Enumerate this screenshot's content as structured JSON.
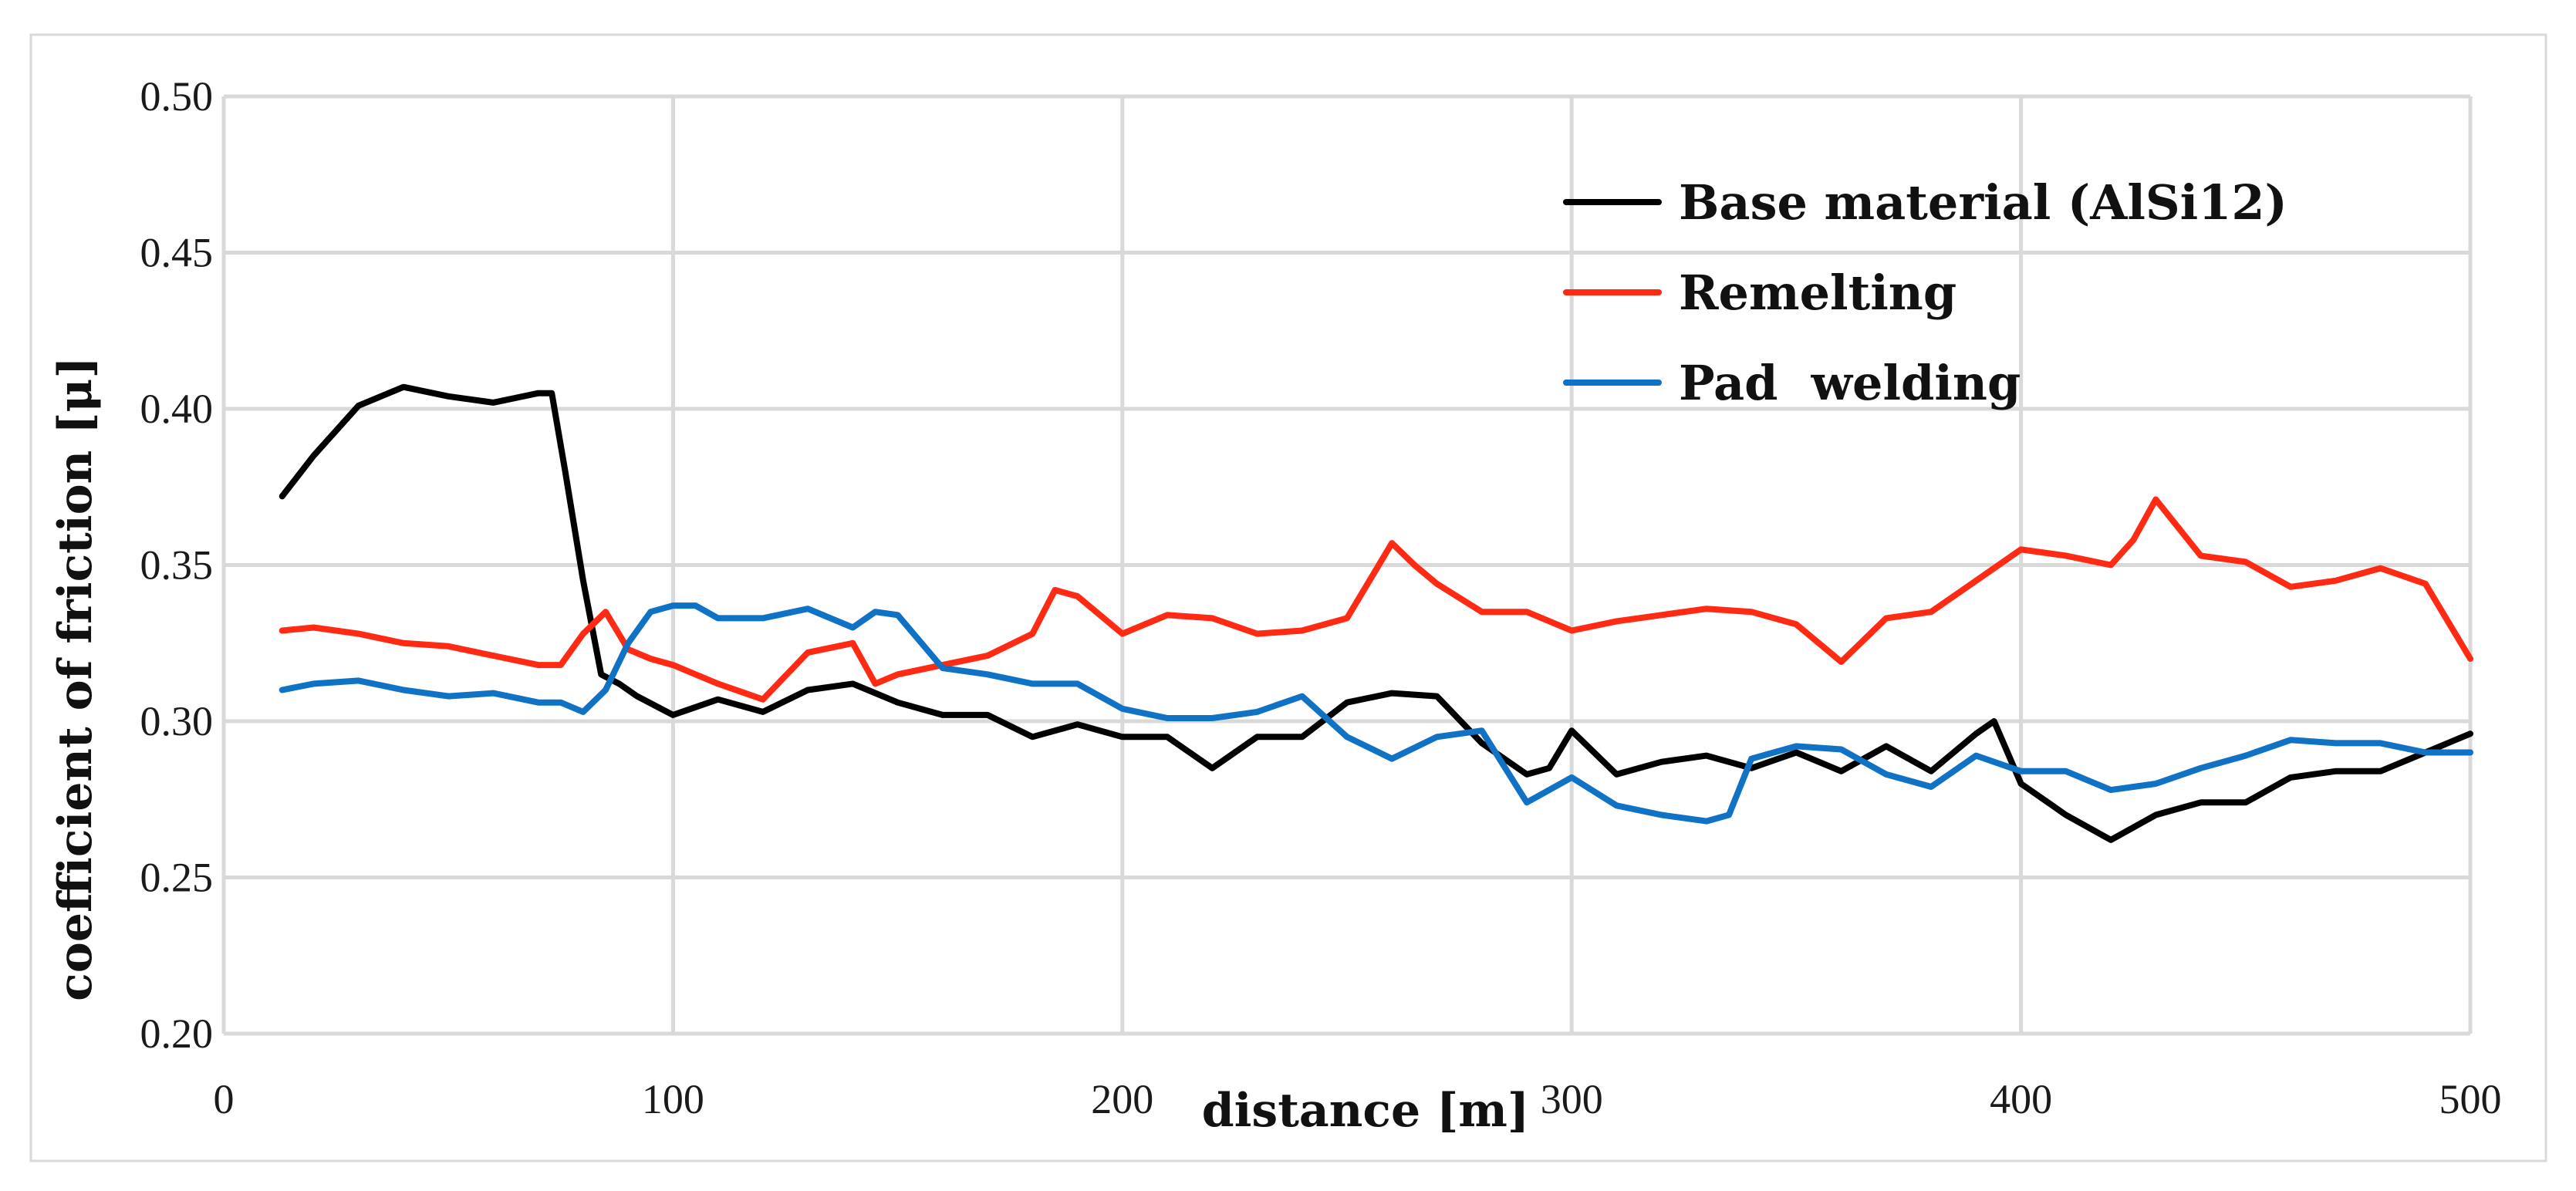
{
  "chart_data": {
    "type": "line",
    "xlabel": "distance [m]",
    "ylabel": "coefficient of friction [μ]",
    "xlim": [
      0,
      500
    ],
    "ylim": [
      0.2,
      0.5
    ],
    "xticks": [
      0,
      100,
      200,
      300,
      400,
      500
    ],
    "xtick_labels": [
      "0",
      "100",
      "200",
      "300",
      "400",
      "500"
    ],
    "yticks": [
      0.2,
      0.25,
      0.3,
      0.35,
      0.4,
      0.45,
      0.5
    ],
    "ytick_labels": [
      "0.20",
      "0.25",
      "0.30",
      "0.35",
      "0.40",
      "0.45",
      "0.50"
    ],
    "grid": true,
    "legend_position": "top-right",
    "series": [
      {
        "name": "Base material (AlSi12)",
        "color": "#000000",
        "x": [
          13,
          20,
          30,
          40,
          50,
          60,
          70,
          73,
          76,
          80,
          84,
          88,
          92,
          100,
          110,
          120,
          130,
          140,
          150,
          160,
          170,
          180,
          190,
          200,
          210,
          220,
          230,
          240,
          250,
          260,
          270,
          280,
          290,
          295,
          300,
          310,
          320,
          330,
          340,
          350,
          360,
          370,
          380,
          390,
          394,
          400,
          410,
          420,
          430,
          440,
          450,
          460,
          470,
          480,
          490,
          500
        ],
        "y": [
          0.372,
          0.385,
          0.401,
          0.407,
          0.404,
          0.402,
          0.405,
          0.405,
          0.38,
          0.345,
          0.315,
          0.312,
          0.308,
          0.302,
          0.307,
          0.303,
          0.31,
          0.312,
          0.306,
          0.302,
          0.302,
          0.295,
          0.299,
          0.295,
          0.295,
          0.285,
          0.295,
          0.295,
          0.306,
          0.309,
          0.308,
          0.293,
          0.283,
          0.285,
          0.297,
          0.283,
          0.287,
          0.289,
          0.285,
          0.29,
          0.284,
          0.292,
          0.284,
          0.296,
          0.3,
          0.28,
          0.27,
          0.262,
          0.27,
          0.274,
          0.274,
          0.282,
          0.284,
          0.284,
          0.29,
          0.296
        ]
      },
      {
        "name": "Remelting",
        "color": "#ff2a14",
        "x": [
          13,
          20,
          30,
          40,
          50,
          60,
          70,
          75,
          80,
          85,
          90,
          95,
          100,
          110,
          120,
          130,
          140,
          145,
          150,
          160,
          170,
          180,
          185,
          190,
          200,
          210,
          220,
          230,
          240,
          250,
          260,
          265,
          270,
          280,
          290,
          300,
          310,
          320,
          330,
          340,
          350,
          360,
          370,
          380,
          390,
          400,
          410,
          420,
          425,
          430,
          440,
          450,
          460,
          470,
          480,
          490,
          500
        ],
        "y": [
          0.329,
          0.33,
          0.328,
          0.325,
          0.324,
          0.321,
          0.318,
          0.318,
          0.328,
          0.335,
          0.323,
          0.32,
          0.318,
          0.312,
          0.307,
          0.322,
          0.325,
          0.312,
          0.315,
          0.318,
          0.321,
          0.328,
          0.342,
          0.34,
          0.328,
          0.334,
          0.333,
          0.328,
          0.329,
          0.333,
          0.357,
          0.35,
          0.344,
          0.335,
          0.335,
          0.329,
          0.332,
          0.334,
          0.336,
          0.335,
          0.331,
          0.319,
          0.333,
          0.335,
          0.345,
          0.355,
          0.353,
          0.35,
          0.358,
          0.371,
          0.353,
          0.351,
          0.343,
          0.345,
          0.349,
          0.344,
          0.32
        ]
      },
      {
        "name": "Pad  welding",
        "color": "#0f72c4",
        "x": [
          13,
          20,
          30,
          40,
          50,
          60,
          70,
          75,
          80,
          85,
          90,
          95,
          100,
          105,
          110,
          120,
          130,
          140,
          145,
          150,
          160,
          170,
          180,
          190,
          200,
          210,
          220,
          230,
          240,
          250,
          260,
          270,
          280,
          290,
          300,
          310,
          320,
          330,
          335,
          340,
          350,
          360,
          370,
          380,
          390,
          400,
          410,
          420,
          430,
          440,
          450,
          460,
          470,
          480,
          490,
          500
        ],
        "y": [
          0.31,
          0.312,
          0.313,
          0.31,
          0.308,
          0.309,
          0.306,
          0.306,
          0.303,
          0.31,
          0.325,
          0.335,
          0.337,
          0.337,
          0.333,
          0.333,
          0.336,
          0.33,
          0.335,
          0.334,
          0.317,
          0.315,
          0.312,
          0.312,
          0.304,
          0.301,
          0.301,
          0.303,
          0.308,
          0.295,
          0.288,
          0.295,
          0.297,
          0.274,
          0.282,
          0.273,
          0.27,
          0.268,
          0.27,
          0.288,
          0.292,
          0.291,
          0.283,
          0.279,
          0.289,
          0.284,
          0.284,
          0.278,
          0.28,
          0.285,
          0.289,
          0.294,
          0.293,
          0.293,
          0.29,
          0.29
        ]
      }
    ]
  }
}
